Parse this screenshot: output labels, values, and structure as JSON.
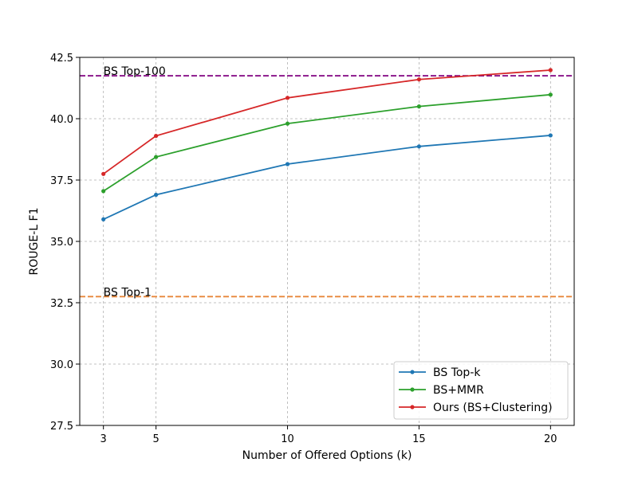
{
  "chart_data": {
    "type": "line",
    "xlabel": "Number of Offered Options (k)",
    "ylabel": "ROUGE-L F1",
    "x": [
      3,
      5,
      10,
      15,
      20
    ],
    "x_ticks": [
      "3",
      "5",
      "10",
      "15",
      "20"
    ],
    "xlim": [
      2.1,
      20.9
    ],
    "ylim": [
      27.5,
      42.5
    ],
    "y_ticks": [
      "27.5",
      "30.0",
      "32.5",
      "35.0",
      "37.5",
      "40.0",
      "42.5"
    ],
    "grid": true,
    "legend_position": "lower-right",
    "series": [
      {
        "name": "BS Top-k",
        "color": "#1f77b4",
        "values": [
          35.9,
          36.9,
          38.15,
          38.87,
          39.32
        ]
      },
      {
        "name": "BS+MMR",
        "color": "#2ca02c",
        "values": [
          37.05,
          38.44,
          39.8,
          40.5,
          40.98
        ]
      },
      {
        "name": "Ours (BS+Clustering)",
        "color": "#d62728",
        "values": [
          37.75,
          39.3,
          40.85,
          41.6,
          41.98
        ]
      }
    ],
    "reference_lines": [
      {
        "label": "BS Top-100",
        "value": 41.75,
        "color": "#800080"
      },
      {
        "label": "BS Top-1",
        "value": 32.75,
        "color": "#e8873a"
      }
    ]
  }
}
